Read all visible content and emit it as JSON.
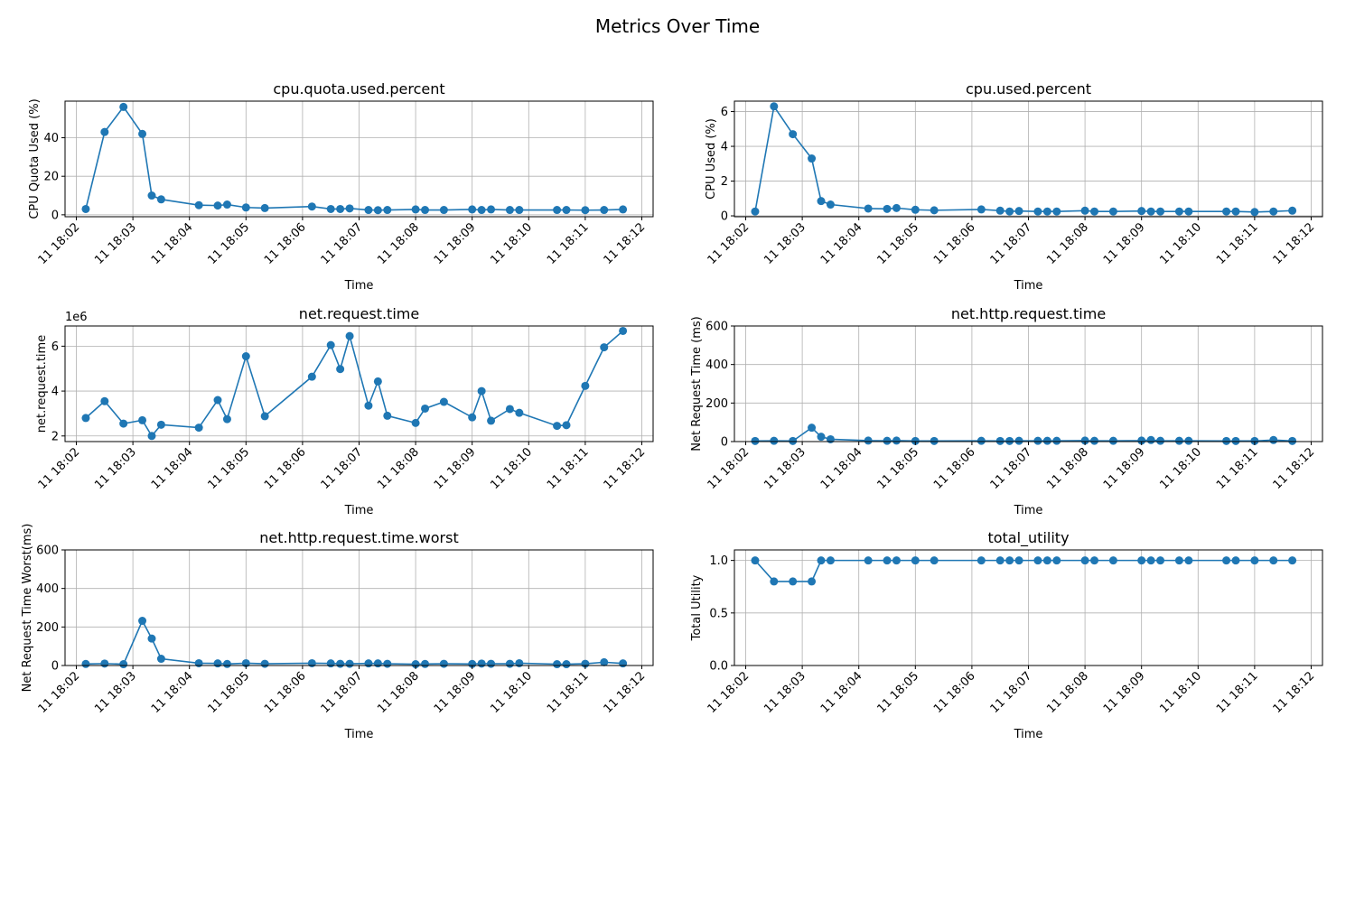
{
  "figure": {
    "title": "Metrics Over Time",
    "x_tick_labels": [
      "11 18:02",
      "11 18:03",
      "11 18:04",
      "11 18:05",
      "11 18:06",
      "11 18:07",
      "11 18:08",
      "11 18:09",
      "11 18:10",
      "11 18:11",
      "11 18:12"
    ]
  },
  "colors": {
    "series": "#1f77b4",
    "grid": "#b0b0b0",
    "axes": "#000000",
    "background": "#ffffff"
  },
  "chart_data": [
    {
      "type": "line",
      "title": "cpu.quota.used.percent",
      "xlabel": "Time",
      "ylabel": "CPU Quota Used (%)",
      "x": [
        "18:02:10",
        "18:02:30",
        "18:02:50",
        "18:03:10",
        "18:03:20",
        "18:03:30",
        "18:04:10",
        "18:04:30",
        "18:04:40",
        "18:05:00",
        "18:05:20",
        "18:06:10",
        "18:06:30",
        "18:06:40",
        "18:06:50",
        "18:07:10",
        "18:07:20",
        "18:07:30",
        "18:08:00",
        "18:08:10",
        "18:08:30",
        "18:09:00",
        "18:09:10",
        "18:09:20",
        "18:09:40",
        "18:09:50",
        "18:10:30",
        "18:10:40",
        "18:11:00",
        "18:11:20",
        "18:11:40"
      ],
      "values": [
        3,
        43,
        56,
        42,
        10,
        8,
        5,
        4.8,
        5.3,
        3.8,
        3.5,
        4.3,
        3,
        3,
        3.3,
        2.5,
        2.4,
        2.5,
        2.8,
        2.5,
        2.5,
        2.8,
        2.5,
        2.8,
        2.5,
        2.5,
        2.5,
        2.5,
        2.4,
        2.5,
        2.8
      ],
      "xlim": [
        "18:01:48",
        "18:12:12"
      ],
      "ylim": [
        -1,
        59
      ],
      "yticks": [
        0,
        20,
        40
      ],
      "ytick_labels": [
        "0",
        "20",
        "40"
      ],
      "offset_text": "",
      "grid": true
    },
    {
      "type": "line",
      "title": "cpu.used.percent",
      "xlabel": "Time",
      "ylabel": "CPU Used (%)",
      "x": [
        "18:02:10",
        "18:02:30",
        "18:02:50",
        "18:03:10",
        "18:03:20",
        "18:03:30",
        "18:04:10",
        "18:04:30",
        "18:04:40",
        "18:05:00",
        "18:05:20",
        "18:06:10",
        "18:06:30",
        "18:06:40",
        "18:06:50",
        "18:07:10",
        "18:07:20",
        "18:07:30",
        "18:08:00",
        "18:08:10",
        "18:08:30",
        "18:09:00",
        "18:09:10",
        "18:09:20",
        "18:09:40",
        "18:09:50",
        "18:10:30",
        "18:10:40",
        "18:11:00",
        "18:11:20",
        "18:11:40"
      ],
      "values": [
        0.25,
        6.3,
        4.7,
        3.3,
        0.85,
        0.65,
        0.42,
        0.4,
        0.45,
        0.35,
        0.32,
        0.37,
        0.3,
        0.25,
        0.28,
        0.25,
        0.25,
        0.25,
        0.3,
        0.25,
        0.25,
        0.28,
        0.25,
        0.25,
        0.25,
        0.25,
        0.25,
        0.25,
        0.22,
        0.25,
        0.3
      ],
      "xlim": [
        "18:01:48",
        "18:12:12"
      ],
      "ylim": [
        -0.05,
        6.6
      ],
      "yticks": [
        0,
        2,
        4,
        6
      ],
      "ytick_labels": [
        "0",
        "2",
        "4",
        "6"
      ],
      "offset_text": "",
      "grid": true
    },
    {
      "type": "line",
      "title": "net.request.time",
      "xlabel": "Time",
      "ylabel": "net.request.time",
      "x": [
        "18:02:10",
        "18:02:30",
        "18:02:50",
        "18:03:10",
        "18:03:20",
        "18:03:30",
        "18:04:10",
        "18:04:30",
        "18:04:40",
        "18:05:00",
        "18:05:20",
        "18:06:10",
        "18:06:30",
        "18:06:40",
        "18:06:50",
        "18:07:10",
        "18:07:20",
        "18:07:30",
        "18:08:00",
        "18:08:10",
        "18:08:30",
        "18:09:00",
        "18:09:10",
        "18:09:20",
        "18:09:40",
        "18:09:50",
        "18:10:30",
        "18:10:40",
        "18:11:00",
        "18:11:20",
        "18:11:40"
      ],
      "values": [
        2800000,
        3550000,
        2550000,
        2700000,
        2000000,
        2500000,
        2370000,
        3600000,
        2750000,
        5550000,
        2880000,
        4640000,
        6050000,
        4980000,
        6450000,
        3350000,
        4430000,
        2900000,
        2580000,
        3220000,
        3520000,
        2830000,
        4000000,
        2680000,
        3200000,
        3030000,
        2450000,
        2480000,
        4230000,
        5950000,
        6680000
      ],
      "xlim": [
        "18:01:48",
        "18:12:12"
      ],
      "ylim": [
        1750000,
        6900000
      ],
      "yticks": [
        2000000,
        4000000,
        6000000
      ],
      "ytick_labels": [
        "2",
        "4",
        "6"
      ],
      "offset_text": "1e6",
      "grid": true
    },
    {
      "type": "line",
      "title": "net.http.request.time",
      "xlabel": "Time",
      "ylabel": "Net Request Time (ms)",
      "x": [
        "18:02:10",
        "18:02:30",
        "18:02:50",
        "18:03:10",
        "18:03:20",
        "18:03:30",
        "18:04:10",
        "18:04:30",
        "18:04:40",
        "18:05:00",
        "18:05:20",
        "18:06:10",
        "18:06:30",
        "18:06:40",
        "18:06:50",
        "18:07:10",
        "18:07:20",
        "18:07:30",
        "18:08:00",
        "18:08:10",
        "18:08:30",
        "18:09:00",
        "18:09:10",
        "18:09:20",
        "18:09:40",
        "18:09:50",
        "18:10:30",
        "18:10:40",
        "18:11:00",
        "18:11:20",
        "18:11:40"
      ],
      "values": [
        3,
        4,
        3,
        72,
        25,
        12,
        5,
        4,
        5,
        3,
        3,
        4,
        3,
        3,
        4,
        4,
        4,
        4,
        5,
        4,
        4,
        5,
        8,
        4,
        4,
        4,
        3,
        3,
        3,
        8,
        3
      ],
      "xlim": [
        "18:01:48",
        "18:12:12"
      ],
      "ylim": [
        0,
        600
      ],
      "yticks": [
        0,
        200,
        400,
        600
      ],
      "ytick_labels": [
        "0",
        "200",
        "400",
        "600"
      ],
      "offset_text": "",
      "grid": true
    },
    {
      "type": "line",
      "title": "net.http.request.time.worst",
      "xlabel": "Time",
      "ylabel": "Net Request Time Worst(ms)",
      "x": [
        "18:02:10",
        "18:02:30",
        "18:02:50",
        "18:03:10",
        "18:03:20",
        "18:03:30",
        "18:04:10",
        "18:04:30",
        "18:04:40",
        "18:05:00",
        "18:05:20",
        "18:06:10",
        "18:06:30",
        "18:06:40",
        "18:06:50",
        "18:07:10",
        "18:07:20",
        "18:07:30",
        "18:08:00",
        "18:08:10",
        "18:08:30",
        "18:09:00",
        "18:09:10",
        "18:09:20",
        "18:09:40",
        "18:09:50",
        "18:10:30",
        "18:10:40",
        "18:11:00",
        "18:11:20",
        "18:11:40"
      ],
      "values": [
        8,
        10,
        7,
        232,
        140,
        35,
        12,
        11,
        8,
        12,
        9,
        12,
        11,
        9,
        9,
        11,
        11,
        9,
        7,
        8,
        9,
        8,
        10,
        9,
        9,
        12,
        7,
        7,
        9,
        17,
        11
      ],
      "xlim": [
        "18:01:48",
        "18:12:12"
      ],
      "ylim": [
        0,
        600
      ],
      "yticks": [
        0,
        200,
        400,
        600
      ],
      "ytick_labels": [
        "0",
        "200",
        "400",
        "600"
      ],
      "offset_text": "",
      "grid": true
    },
    {
      "type": "line",
      "title": "total_utility",
      "xlabel": "Time",
      "ylabel": "Total Utility",
      "x": [
        "18:02:10",
        "18:02:30",
        "18:02:50",
        "18:03:10",
        "18:03:20",
        "18:03:30",
        "18:04:10",
        "18:04:30",
        "18:04:40",
        "18:05:00",
        "18:05:20",
        "18:06:10",
        "18:06:30",
        "18:06:40",
        "18:06:50",
        "18:07:10",
        "18:07:20",
        "18:07:30",
        "18:08:00",
        "18:08:10",
        "18:08:30",
        "18:09:00",
        "18:09:10",
        "18:09:20",
        "18:09:40",
        "18:09:50",
        "18:10:30",
        "18:10:40",
        "18:11:00",
        "18:11:20",
        "18:11:40"
      ],
      "values": [
        1.0,
        0.8,
        0.8,
        0.8,
        1.0,
        1.0,
        1.0,
        1.0,
        1.0,
        1.0,
        1.0,
        1.0,
        1.0,
        1.0,
        1.0,
        1.0,
        1.0,
        1.0,
        1.0,
        1.0,
        1.0,
        1.0,
        1.0,
        1.0,
        1.0,
        1.0,
        1.0,
        1.0,
        1.0,
        1.0,
        1.0
      ],
      "xlim": [
        "18:01:48",
        "18:12:12"
      ],
      "ylim": [
        0,
        1.1
      ],
      "yticks": [
        0,
        0.5,
        1.0
      ],
      "ytick_labels": [
        "0.0",
        "0.5",
        "1.0"
      ],
      "offset_text": "",
      "grid": true
    }
  ]
}
